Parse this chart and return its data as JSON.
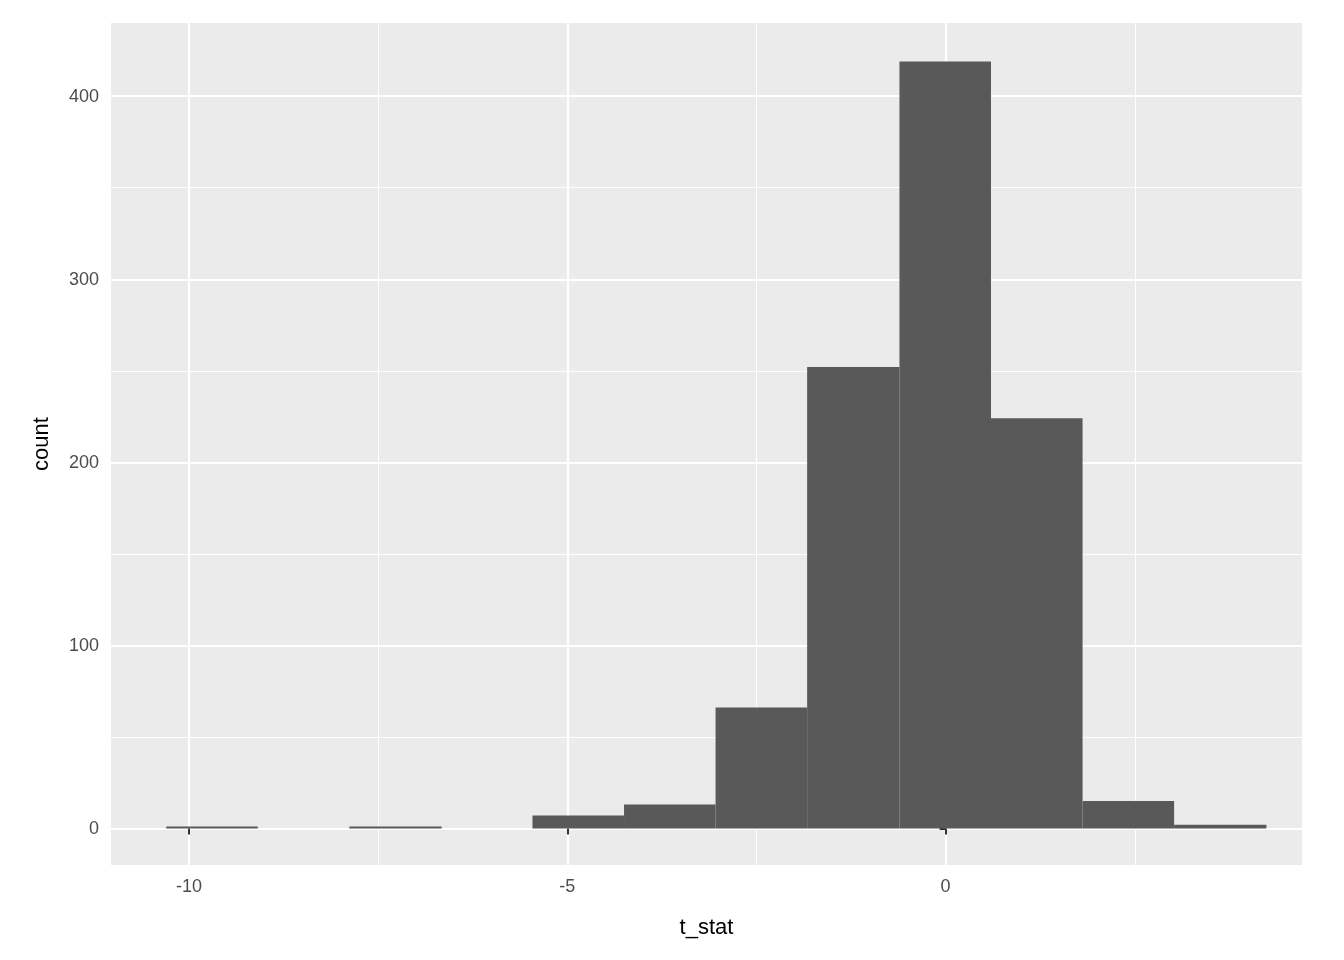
{
  "chart_data": {
    "type": "histogram",
    "xlabel": "t_stat",
    "ylabel": "count",
    "bins": [
      -10.3,
      -9.09,
      -7.88,
      -6.66,
      -5.46,
      -4.25,
      -3.04,
      -1.83,
      -0.61,
      0.6,
      1.81,
      3.02,
      4.24
    ],
    "values": [
      1,
      0,
      1,
      0,
      7,
      13,
      66,
      252,
      419,
      224,
      15,
      2
    ],
    "color": "#595959",
    "xlim": [
      -11.03,
      4.71
    ],
    "xticks": [
      -10,
      -5,
      0
    ],
    "ylim": [
      -20,
      440
    ],
    "yticks": [
      0,
      100,
      200,
      300,
      400
    ],
    "grid": true
  }
}
